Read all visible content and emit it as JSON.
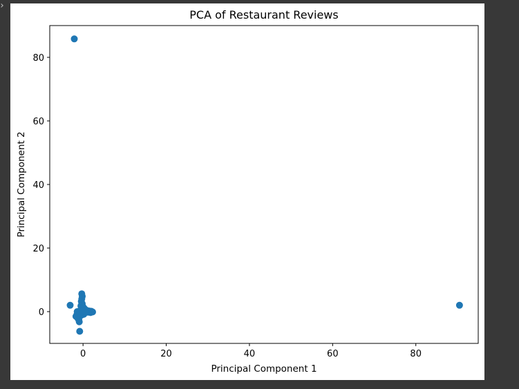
{
  "window": {
    "background_color": "#383838"
  },
  "chart_data": {
    "type": "scatter",
    "title": "PCA of Restaurant Reviews",
    "xlabel": "Principal Component 1",
    "ylabel": "Principal Component 2",
    "xlim": [
      -8,
      95
    ],
    "ylim": [
      -10,
      90
    ],
    "xticks": [
      0,
      20,
      40,
      60,
      80
    ],
    "yticks": [
      0,
      20,
      40,
      60,
      80
    ],
    "grid": false,
    "legend": "none",
    "marker_color": "#1f77b4",
    "points": [
      {
        "x": -2.1,
        "y": 85.8
      },
      {
        "x": 90.5,
        "y": 2.0
      },
      {
        "x": -3.1,
        "y": 2.0
      },
      {
        "x": -0.8,
        "y": -6.2
      },
      {
        "x": -0.3,
        "y": 5.6
      },
      {
        "x": -0.2,
        "y": 4.8
      },
      {
        "x": -0.3,
        "y": 4.0
      },
      {
        "x": -0.4,
        "y": 3.2
      },
      {
        "x": -0.2,
        "y": 2.5
      },
      {
        "x": -0.5,
        "y": 1.8
      },
      {
        "x": 0.0,
        "y": 1.5
      },
      {
        "x": 0.3,
        "y": 1.0
      },
      {
        "x": 0.6,
        "y": 0.6
      },
      {
        "x": 1.0,
        "y": 0.3
      },
      {
        "x": 1.5,
        "y": 0.2
      },
      {
        "x": 2.0,
        "y": 0.1
      },
      {
        "x": 2.3,
        "y": -0.1
      },
      {
        "x": 1.8,
        "y": -0.3
      },
      {
        "x": 1.2,
        "y": -0.2
      },
      {
        "x": 0.8,
        "y": 0.0
      },
      {
        "x": 0.4,
        "y": -0.4
      },
      {
        "x": 0.0,
        "y": -0.6
      },
      {
        "x": -0.3,
        "y": -0.2
      },
      {
        "x": -0.6,
        "y": 0.4
      },
      {
        "x": -0.9,
        "y": 0.1
      },
      {
        "x": -1.2,
        "y": -0.5
      },
      {
        "x": -1.5,
        "y": -1.0
      },
      {
        "x": -1.7,
        "y": -1.5
      },
      {
        "x": -1.3,
        "y": -2.0
      },
      {
        "x": -1.0,
        "y": -2.6
      },
      {
        "x": -0.9,
        "y": -3.2
      },
      {
        "x": -0.6,
        "y": -1.3
      },
      {
        "x": -0.2,
        "y": -1.0
      },
      {
        "x": 0.2,
        "y": -0.8
      },
      {
        "x": 0.1,
        "y": 0.6
      },
      {
        "x": -0.4,
        "y": 1.0
      },
      {
        "x": -0.7,
        "y": -0.7
      },
      {
        "x": -1.4,
        "y": 0.0
      },
      {
        "x": 0.5,
        "y": 0.3
      },
      {
        "x": -0.1,
        "y": 0.2
      }
    ]
  }
}
